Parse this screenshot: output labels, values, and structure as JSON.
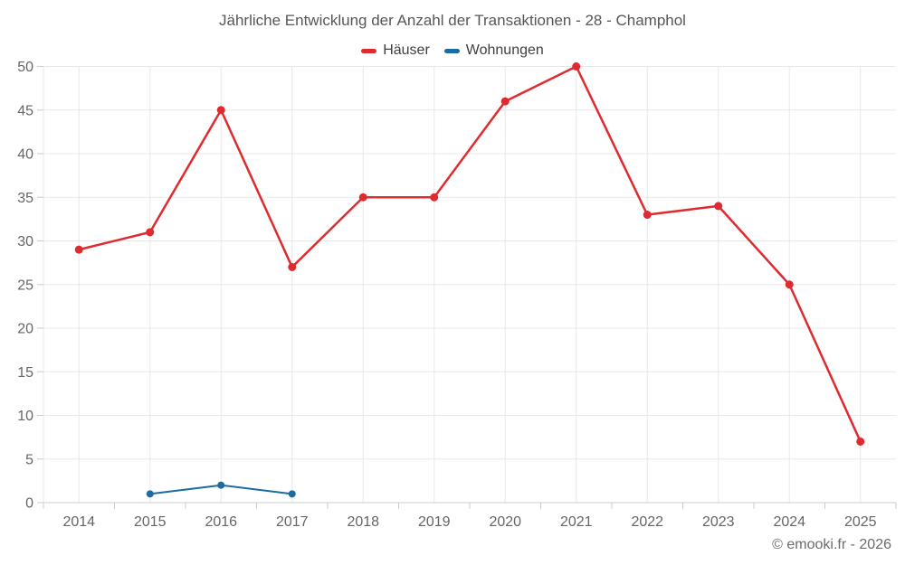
{
  "page": {
    "copyright": "© emooki.fr - 2026"
  },
  "chart_data": {
    "type": "line",
    "title": "Jährliche Entwicklung der Anzahl der Transaktionen - 28 - Champhol",
    "xlabel": "",
    "ylabel": "",
    "categories": [
      "2014",
      "2015",
      "2016",
      "2017",
      "2018",
      "2019",
      "2020",
      "2021",
      "2022",
      "2023",
      "2024",
      "2025"
    ],
    "series": [
      {
        "name": "Häuser",
        "color": "#df2b2f",
        "values": [
          29,
          31,
          45,
          27,
          35,
          35,
          46,
          50,
          33,
          34,
          25,
          7
        ]
      },
      {
        "name": "Wohnungen",
        "color": "#1b6ca3",
        "values": [
          null,
          1,
          2,
          1,
          null,
          null,
          null,
          null,
          null,
          null,
          null,
          null
        ]
      }
    ],
    "ylim": [
      0,
      50
    ],
    "yticks": [
      0,
      5,
      10,
      15,
      20,
      25,
      30,
      35,
      40,
      45,
      50
    ],
    "grid": true,
    "legend_position": "top",
    "style": {
      "grid_color": "#e8e8e8",
      "axis_color": "#cccccc",
      "tick_label_color": "#666666",
      "title_color": "#575757",
      "legend_text_color": "#404040"
    }
  }
}
